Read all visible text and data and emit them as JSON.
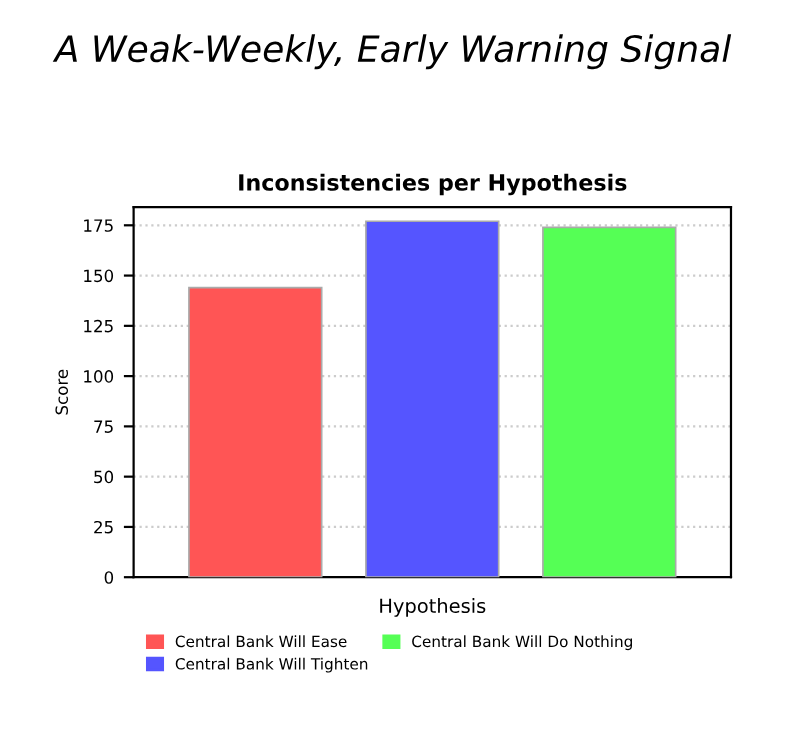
{
  "chart_data": {
    "type": "bar",
    "title": "A Weak-Weekly, Early Warning Signal",
    "subtitle": "Inconsistencies per Hypothesis",
    "xlabel": "Hypothesis",
    "ylabel": "Score",
    "categories": [
      null
    ],
    "series": [
      {
        "name": "Central Bank Will Ease",
        "color": "#ff5555",
        "values": [
          144
        ]
      },
      {
        "name": "Central Bank Will Tighten",
        "color": "#5555ff",
        "values": [
          177
        ]
      },
      {
        "name": "Central Bank Will Do Nothing",
        "color": "#55ff55",
        "values": [
          174
        ]
      }
    ],
    "ylim": [
      0,
      184
    ],
    "yticks": [
      0,
      25,
      50,
      75,
      100,
      125,
      150,
      175
    ],
    "grid": "y",
    "legend": "bottom"
  }
}
